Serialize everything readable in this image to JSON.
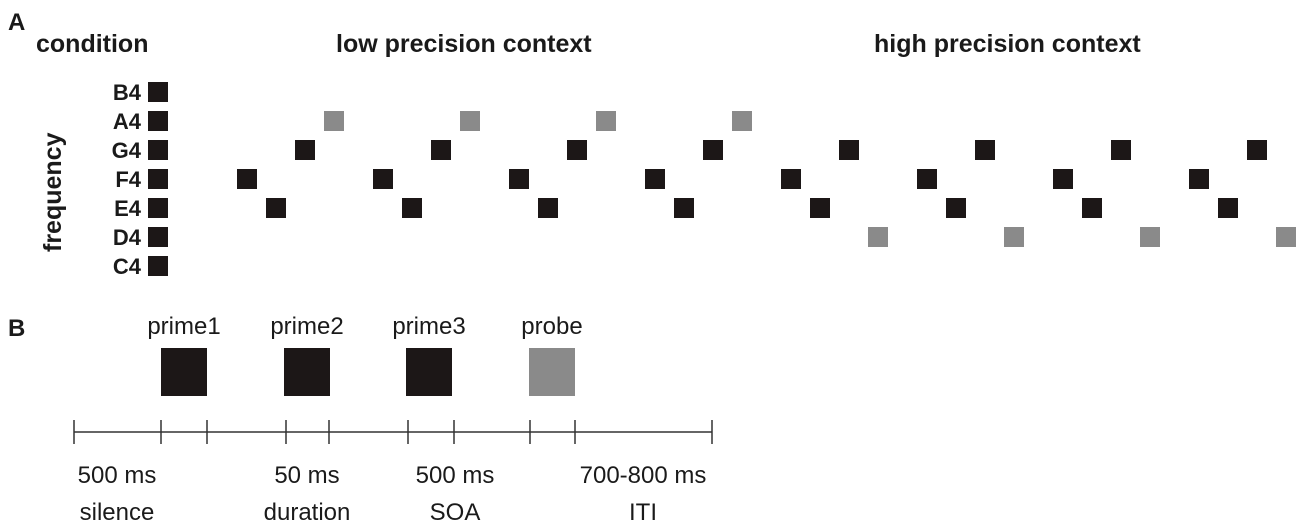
{
  "panel_a": {
    "label": "A",
    "condition_label": "condition",
    "frequency_label": "frequency",
    "contexts": [
      "low precision context",
      "high precision context"
    ],
    "frequencies": [
      "B4",
      "A4",
      "G4",
      "F4",
      "E4",
      "D4",
      "C4"
    ],
    "trials": [
      {
        "context": "low precision context",
        "primes": [
          "F4",
          "E4",
          "G4"
        ],
        "probe": "A4"
      },
      {
        "context": "low precision context",
        "primes": [
          "F4",
          "E4",
          "G4"
        ],
        "probe": "A4"
      },
      {
        "context": "low precision context",
        "primes": [
          "F4",
          "E4",
          "G4"
        ],
        "probe": "A4"
      },
      {
        "context": "low precision context",
        "primes": [
          "F4",
          "E4",
          "G4"
        ],
        "probe": "A4"
      },
      {
        "context": "high precision context",
        "primes": [
          "F4",
          "E4",
          "G4"
        ],
        "probe": "D4"
      },
      {
        "context": "high precision context",
        "primes": [
          "F4",
          "E4",
          "G4"
        ],
        "probe": "D4"
      },
      {
        "context": "high precision context",
        "primes": [
          "F4",
          "E4",
          "G4"
        ],
        "probe": "D4"
      },
      {
        "context": "high precision context",
        "primes": [
          "F4",
          "E4",
          "G4"
        ],
        "probe": "D4"
      }
    ]
  },
  "panel_b": {
    "label": "B",
    "stimuli": [
      "prime1",
      "prime2",
      "prime3",
      "probe"
    ],
    "intervals": [
      {
        "value": "500 ms",
        "name": "silence"
      },
      {
        "value": "50 ms",
        "name": "duration"
      },
      {
        "value": "500 ms",
        "name": "SOA"
      },
      {
        "value": "700-800 ms",
        "name": "ITI"
      }
    ]
  },
  "colors": {
    "prime": "#1c1717",
    "probe": "#8a8a8a",
    "text": "#1a1a1a",
    "line": "#333333"
  }
}
